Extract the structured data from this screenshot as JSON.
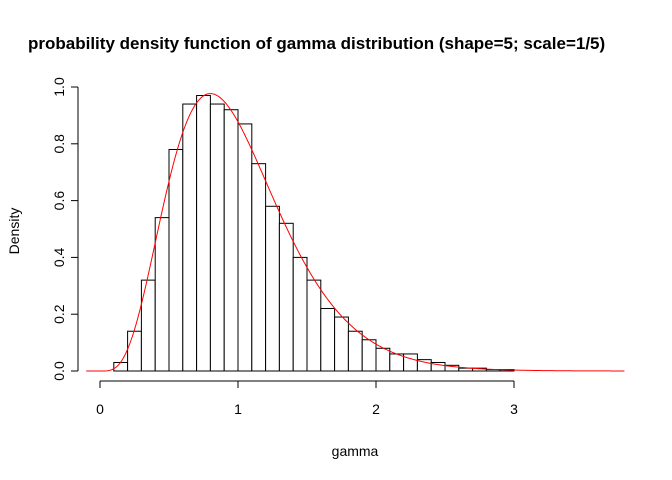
{
  "chart_data": {
    "type": "bar",
    "title": "probability density function of gamma distribution (shape=5; scale=1/5)",
    "xlabel": "gamma",
    "ylabel": "Density",
    "xlim": [
      -0.1,
      3.8
    ],
    "ylim": [
      0,
      1.0
    ],
    "x_ticks": [
      "0",
      "1",
      "2",
      "3"
    ],
    "y_ticks": [
      "0.0",
      "0.2",
      "0.4",
      "0.6",
      "0.8",
      "1.0"
    ],
    "bin_width": 0.1,
    "bin_starts": [
      0.1,
      0.2,
      0.3,
      0.4,
      0.5,
      0.6,
      0.7,
      0.8,
      0.9,
      1.0,
      1.1,
      1.2,
      1.3,
      1.4,
      1.5,
      1.6,
      1.7,
      1.8,
      1.9,
      2.0,
      2.1,
      2.2,
      2.3,
      2.4,
      2.5,
      2.6,
      2.7,
      2.8,
      2.9
    ],
    "values": [
      0.03,
      0.14,
      0.32,
      0.54,
      0.78,
      0.94,
      0.97,
      0.94,
      0.92,
      0.87,
      0.73,
      0.58,
      0.52,
      0.4,
      0.32,
      0.22,
      0.19,
      0.14,
      0.11,
      0.08,
      0.06,
      0.06,
      0.04,
      0.03,
      0.02,
      0.01,
      0.01,
      0.005,
      0.005
    ],
    "series": [
      {
        "type": "line",
        "color": "#ff0000",
        "x_range": [
          -0.1,
          3.8
        ],
        "function": "gamma_pdf",
        "shape": 5,
        "rate": 5
      }
    ],
    "grid": false,
    "bar_fill": "#ffffff",
    "bar_stroke": "#000000"
  }
}
